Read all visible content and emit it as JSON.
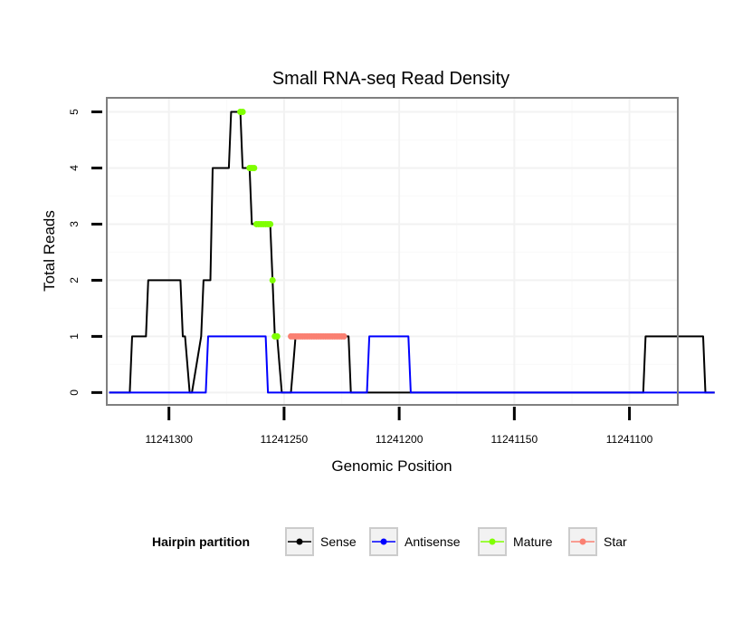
{
  "chart_data": {
    "type": "line",
    "title": "Small RNA-seq Read Density",
    "xlabel": "Genomic Position",
    "ylabel": "Total Reads",
    "x_reversed": true,
    "xlim": [
      11241079,
      11241327
    ],
    "ylim": [
      -0.22,
      5.25
    ],
    "x_ticks": [
      11241300,
      11241250,
      11241200,
      11241150,
      11241100
    ],
    "x_tick_labels": [
      "11241300",
      "11241250",
      "11241200",
      "11241150",
      "11241100"
    ],
    "y_ticks": [
      0,
      1,
      2,
      3,
      4,
      5
    ],
    "y_tick_labels": [
      "0",
      "1",
      "2",
      "3",
      "4",
      "5"
    ],
    "grid": true,
    "legend": {
      "title": "Hairpin partition",
      "placement": "bottom",
      "entries": [
        {
          "label": "Sense",
          "color": "#000000"
        },
        {
          "label": "Antisense",
          "color": "#0000ff"
        },
        {
          "label": "Mature",
          "color": "#7fff00"
        },
        {
          "label": "Star",
          "color": "#fa8072"
        }
      ]
    },
    "series": [
      {
        "name": "Sense",
        "color": "#000000",
        "x": [
          11241326,
          11241317,
          11241316,
          11241310,
          11241309,
          11241295,
          11241294,
          11241293,
          11241291,
          11241290,
          11241286,
          11241285,
          11241282,
          11241281,
          11241274,
          11241273,
          11241269,
          11241268,
          11241265,
          11241264,
          11241263,
          11241261,
          11241260,
          11241256,
          11241255,
          11241254,
          11241253,
          11241252,
          11241251,
          11241250,
          11241249,
          11241247,
          11241246,
          11241245,
          11241244,
          11241243,
          11241239,
          11241238,
          11241233,
          11241227,
          11241222,
          11241221,
          11241094,
          11241093,
          11241068,
          11241067,
          11241063
        ],
        "y": [
          0,
          0,
          1,
          1,
          2,
          2,
          1,
          1,
          0,
          0,
          1,
          2,
          2,
          4,
          4,
          5,
          5,
          4,
          4,
          3,
          3,
          3,
          3,
          3,
          2,
          1,
          1,
          0.5,
          0,
          0,
          0,
          0,
          0.5,
          1,
          1,
          1,
          1,
          1,
          1,
          1,
          1,
          0,
          0,
          1,
          1,
          0,
          0
        ]
      },
      {
        "name": "Antisense",
        "color": "#0000ff",
        "x": [
          11241326,
          11241284,
          11241283,
          11241258,
          11241257,
          11241214,
          11241213,
          11241196,
          11241195,
          11241063
        ],
        "y": [
          0,
          0,
          1,
          1,
          0,
          0,
          1,
          1,
          0,
          0
        ]
      },
      {
        "name": "Mature",
        "color": "#7fff00",
        "x": [
          11241269,
          11241268,
          11241265,
          11241264,
          11241263,
          11241262,
          11241261,
          11241260,
          11241259,
          11241258,
          11241257,
          11241256,
          11241255,
          11241254,
          11241253
        ],
        "y": [
          5,
          5,
          4,
          4,
          4,
          3,
          3,
          3,
          3,
          3,
          3,
          3,
          2,
          1,
          1
        ]
      },
      {
        "name": "Star",
        "color": "#fa8072",
        "x": [
          11241247,
          11241246,
          11241245,
          11241244,
          11241243,
          11241242,
          11241241,
          11241240,
          11241239,
          11241238,
          11241237,
          11241236,
          11241235,
          11241234,
          11241233,
          11241232,
          11241231,
          11241230,
          11241229,
          11241228,
          11241227,
          11241226,
          11241225,
          11241224
        ],
        "y": [
          1,
          1,
          1,
          1,
          1,
          1,
          1,
          1,
          1,
          1,
          1,
          1,
          1,
          1,
          1,
          1,
          1,
          1,
          1,
          1,
          1,
          1,
          1,
          1
        ]
      }
    ]
  }
}
